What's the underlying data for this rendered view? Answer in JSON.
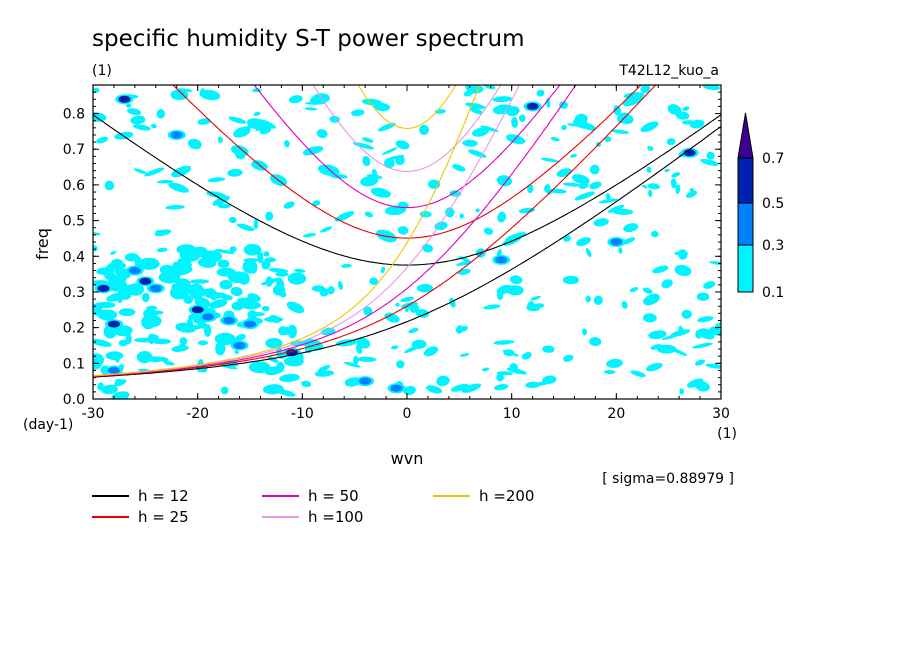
{
  "chart_data": {
    "type": "heatmap",
    "title": "specific humidity S-T power spectrum",
    "subtitle_left": "(1)",
    "subtitle_right": "T42L12_kuo_a",
    "xlabel": "wvn",
    "ylabel": "freq",
    "x_unit_label": "(1)",
    "y_unit_label": "(day-1)",
    "xlim": [
      -30,
      30
    ],
    "ylim": [
      0,
      0.88
    ],
    "x_ticks": [
      -30,
      -20,
      -10,
      0,
      10,
      20,
      30
    ],
    "x_tick_labels": [
      "-30",
      "-20",
      "-10",
      "0",
      "10",
      "20",
      "30"
    ],
    "y_ticks": [
      0,
      0.1,
      0.2,
      0.3,
      0.4,
      0.5,
      0.6,
      0.7,
      0.8
    ],
    "y_tick_labels": [
      "0.0",
      "0.1",
      "0.2",
      "0.3",
      "0.4",
      "0.5",
      "0.6",
      "0.7",
      "0.8"
    ],
    "colorbar": {
      "levels": [
        0.1,
        0.3,
        0.5,
        0.7
      ],
      "level_labels": [
        "0.1",
        "0.3",
        "0.5",
        "0.7"
      ],
      "colors": [
        "#00f4ff",
        "#0080ff",
        "#0020b0",
        "#3c0090"
      ]
    },
    "sigma_note": "[ sigma=0.88979 ]",
    "dispersion_curves": [
      {
        "label": "h = 12",
        "h": 12,
        "color": "#000000"
      },
      {
        "label": "h = 25",
        "h": 25,
        "color": "#e80000"
      },
      {
        "label": "h = 50",
        "h": 50,
        "color": "#e000b8"
      },
      {
        "label": "h =100",
        "h": 100,
        "color": "#e898e0"
      },
      {
        "label": "h =200",
        "h": 200,
        "color": "#f2c400"
      }
    ],
    "spectral_blobs": [
      {
        "x": -29,
        "y": 0.31,
        "level": 2
      },
      {
        "x": -28,
        "y": 0.21,
        "level": 2
      },
      {
        "x": -25,
        "y": 0.33,
        "level": 2
      },
      {
        "x": -24,
        "y": 0.31,
        "level": 1
      },
      {
        "x": -26,
        "y": 0.36,
        "level": 1
      },
      {
        "x": -20,
        "y": 0.25,
        "level": 2
      },
      {
        "x": -19,
        "y": 0.23,
        "level": 1
      },
      {
        "x": -17,
        "y": 0.22,
        "level": 1
      },
      {
        "x": -16,
        "y": 0.15,
        "level": 1
      },
      {
        "x": -15,
        "y": 0.21,
        "level": 1
      },
      {
        "x": -11,
        "y": 0.13,
        "level": 2
      },
      {
        "x": -27,
        "y": 0.84,
        "level": 2
      },
      {
        "x": 12,
        "y": 0.82,
        "level": 2
      },
      {
        "x": 27,
        "y": 0.69,
        "level": 2
      },
      {
        "x": 20,
        "y": 0.44,
        "level": 1
      },
      {
        "x": -4,
        "y": 0.05,
        "level": 1
      },
      {
        "x": -1,
        "y": 0.03,
        "level": 1
      },
      {
        "x": -22,
        "y": 0.74,
        "level": 1
      },
      {
        "x": -28,
        "y": 0.08,
        "level": 1
      },
      {
        "x": 9,
        "y": 0.39,
        "level": 1
      }
    ]
  }
}
